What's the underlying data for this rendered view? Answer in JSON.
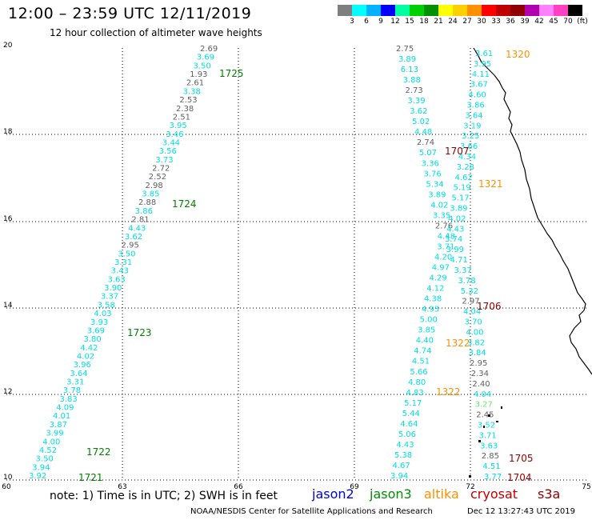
{
  "title": "12:00 – 23:59 UTC 12/11/2019",
  "subtitle": "12 hour collection of altimeter wave heights",
  "scale": {
    "colors": [
      "#7f7f7f",
      "#00ffff",
      "#00b2ff",
      "#0000ff",
      "#00ffa0",
      "#00d000",
      "#009000",
      "#ffff00",
      "#ffd000",
      "#ff9000",
      "#ff0000",
      "#c00000",
      "#900000",
      "#b000b0",
      "#ff80ff",
      "#ff40c0",
      "#000000"
    ],
    "labels": [
      "3",
      "6",
      "9",
      "12",
      "15",
      "18",
      "21",
      "24",
      "27",
      "30",
      "33",
      "36",
      "39",
      "42",
      "45",
      "70",
      "(ft)"
    ]
  },
  "axes": {
    "lon_ticks": [
      "60",
      "63",
      "66",
      "69",
      "72",
      "75"
    ],
    "lat_ticks": [
      "20",
      "18",
      "16",
      "14",
      "12",
      "10"
    ]
  },
  "track_a": {
    "values": [
      "2.69",
      "3.69",
      "3.50",
      "1.93",
      "2.61",
      "3.38",
      "2.53",
      "2.38",
      "2.51",
      "3.95",
      "3.46",
      "3.44",
      "3.56",
      "3.73",
      "2.72",
      "2.52",
      "2.98",
      "3.85",
      "2.88",
      "3.86",
      "2.81",
      "4.43",
      "3.62",
      "2.95",
      "3.50",
      "3.31",
      "3.43",
      "3.63",
      "3.90",
      "3.37",
      "3.58",
      "4.03",
      "3.93",
      "3.69",
      "3.80",
      "4.42",
      "4.02",
      "3.96",
      "3.64",
      "3.31",
      "3.78",
      "3.83",
      "4.09",
      "4.01",
      "3.87",
      "3.99",
      "4.00",
      "4.52",
      "3.50",
      "3.94",
      "3.92"
    ],
    "times": [
      "1725",
      "1724",
      "1723",
      "1722",
      "1721"
    ]
  },
  "track_b": {
    "values": [
      "2.75",
      "3.89",
      "6.13",
      "3.88",
      "2.73",
      "3.39",
      "3.62",
      "5.02",
      "4.48",
      "2.74",
      "5.07",
      "3.36",
      "3.76",
      "5.34",
      "3.89",
      "4.02",
      "3.35",
      "2.76",
      "4.48",
      "3.71",
      "4.20",
      "4.97",
      "4.29",
      "4.12",
      "4.38",
      "4.93",
      "5.00",
      "3.85",
      "4.40",
      "4.74",
      "4.51",
      "5.66",
      "4.80",
      "4.83",
      "5.17",
      "5.44",
      "4.64",
      "5.06",
      "4.43",
      "5.38",
      "4.67",
      "3.94"
    ]
  },
  "track_c": {
    "values": [
      "3.61",
      "3.95",
      "4.11",
      "3.67",
      "4.60",
      "3.86",
      "3.64",
      "3.19",
      "3.25",
      "3.66",
      "4.34",
      "3.28",
      "4.62",
      "5.19",
      "5.17",
      "3.89",
      "4.02",
      "4.43",
      "3.74",
      "3.99",
      "4.71",
      "3.37",
      "3.78",
      "5.32",
      "2.97",
      "4.04",
      "3.70",
      "4.00",
      "3.82",
      "3.84",
      "2.95",
      "2.34",
      "2.40",
      "4.04",
      "3.27",
      "2.45",
      "3.52",
      "3.71",
      "3.63",
      "2.85",
      "4.51",
      "3.77"
    ]
  },
  "time_labels": [
    {
      "text": "1320",
      "sat": "altika"
    },
    {
      "text": "1707",
      "sat": "cryosat"
    },
    {
      "text": "1321",
      "sat": "altika"
    },
    {
      "text": "1706",
      "sat": "cryosat"
    },
    {
      "text": "1322",
      "sat": "altika"
    },
    {
      "text": "1322",
      "sat": "altika"
    },
    {
      "text": "1705",
      "sat": "cryosat"
    },
    {
      "text": "1704",
      "sat": "cryosat"
    }
  ],
  "note": "note:  1) Time is in UTC;  2) SWH is in feet",
  "legend": [
    {
      "name": "jason2",
      "color": "#0000e0"
    },
    {
      "name": "jason3",
      "color": "#009000"
    },
    {
      "name": "altika",
      "color": "#ff9000"
    },
    {
      "name": "cryosat",
      "color": "#c00000"
    },
    {
      "name": "s3a",
      "color": "#900000"
    }
  ],
  "footer_left": "NOAA/NESDIS Center for Satellite Applications and Research",
  "footer_right": "Dec 12 13:27:43 UTC 2019"
}
